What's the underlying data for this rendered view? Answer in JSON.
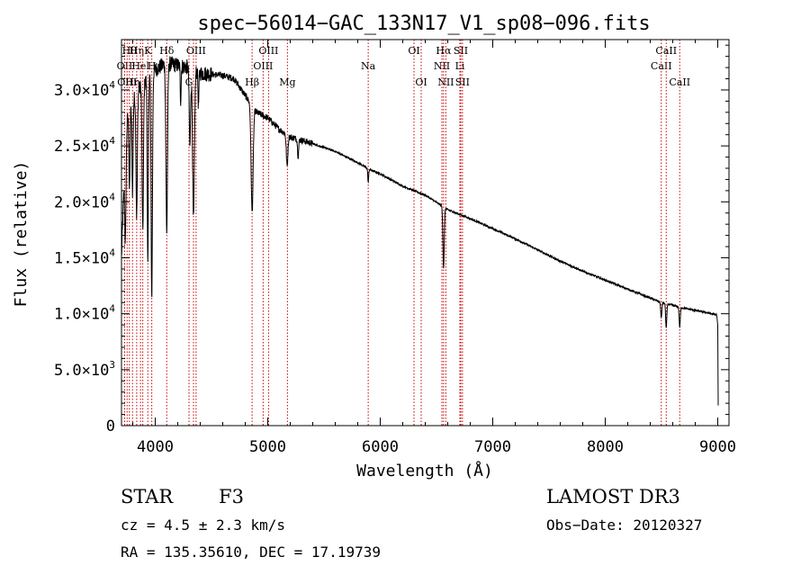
{
  "chart_data": {
    "type": "line",
    "title": "spec−56014−GAC_133N17_V1_sp08−096.fits",
    "xlabel": "Wavelength (Å)",
    "ylabel": "Flux (relative)",
    "xlim": [
      3700,
      9100
    ],
    "ylim": [
      0,
      34500
    ],
    "x_ticks": [
      {
        "value": 4000,
        "label": "4000"
      },
      {
        "value": 5000,
        "label": "5000"
      },
      {
        "value": 6000,
        "label": "6000"
      },
      {
        "value": 7000,
        "label": "7000"
      },
      {
        "value": 8000,
        "label": "8000"
      },
      {
        "value": 9000,
        "label": "9000"
      }
    ],
    "y_ticks": [
      {
        "value": 0,
        "mant": "0",
        "exp": ""
      },
      {
        "value": 5000,
        "mant": "5.0×10",
        "exp": "3"
      },
      {
        "value": 10000,
        "mant": "1.0×10",
        "exp": "4"
      },
      {
        "value": 15000,
        "mant": "1.5×10",
        "exp": "4"
      },
      {
        "value": 20000,
        "mant": "2.0×10",
        "exp": "4"
      },
      {
        "value": 25000,
        "mant": "2.5×10",
        "exp": "4"
      },
      {
        "value": 30000,
        "mant": "3.0×10",
        "exp": "4"
      }
    ],
    "line_color": "#000000",
    "marker_color": "#cc0000",
    "continuum": [
      [
        3700,
        15000
      ],
      [
        3740,
        27000
      ],
      [
        3800,
        29000
      ],
      [
        3850,
        30000
      ],
      [
        3900,
        30500
      ],
      [
        3950,
        31500
      ],
      [
        4000,
        31800
      ],
      [
        4100,
        32400
      ],
      [
        4200,
        32200
      ],
      [
        4300,
        32000
      ],
      [
        4400,
        31500
      ],
      [
        4500,
        31400
      ],
      [
        4600,
        31300
      ],
      [
        4700,
        31000
      ],
      [
        4800,
        29500
      ],
      [
        4900,
        28000
      ],
      [
        5000,
        27500
      ],
      [
        5100,
        26500
      ],
      [
        5200,
        25800
      ],
      [
        5400,
        25200
      ],
      [
        5600,
        24500
      ],
      [
        5800,
        23500
      ],
      [
        5900,
        22900
      ],
      [
        6000,
        22500
      ],
      [
        6200,
        21400
      ],
      [
        6400,
        20600
      ],
      [
        6600,
        19300
      ],
      [
        6800,
        18500
      ],
      [
        7000,
        17600
      ],
      [
        7200,
        16700
      ],
      [
        7400,
        15700
      ],
      [
        7600,
        14700
      ],
      [
        7800,
        13800
      ],
      [
        8000,
        13000
      ],
      [
        8200,
        12200
      ],
      [
        8400,
        11400
      ],
      [
        8500,
        11000
      ],
      [
        8700,
        10500
      ],
      [
        8900,
        10100
      ],
      [
        8990,
        9900
      ],
      [
        9000,
        9000
      ],
      [
        9005,
        0
      ]
    ],
    "absorption": [
      {
        "center": 3735,
        "depth": 9000,
        "width": 6
      },
      {
        "center": 3771,
        "depth": 7000,
        "width": 5
      },
      {
        "center": 3798,
        "depth": 8000,
        "width": 5
      },
      {
        "center": 3835,
        "depth": 11000,
        "width": 6
      },
      {
        "center": 3889,
        "depth": 13000,
        "width": 6
      },
      {
        "center": 3934,
        "depth": 17000,
        "width": 5
      },
      {
        "center": 3969,
        "depth": 20000,
        "width": 6
      },
      {
        "center": 4102,
        "depth": 15000,
        "width": 7
      },
      {
        "center": 4226,
        "depth": 3000,
        "width": 4
      },
      {
        "center": 4308,
        "depth": 7000,
        "width": 6
      },
      {
        "center": 4340,
        "depth": 13500,
        "width": 8
      },
      {
        "center": 4384,
        "depth": 3000,
        "width": 4
      },
      {
        "center": 4861,
        "depth": 9500,
        "width": 9
      },
      {
        "center": 5172,
        "depth": 2800,
        "width": 7
      },
      {
        "center": 5270,
        "depth": 1500,
        "width": 5
      },
      {
        "center": 5893,
        "depth": 1200,
        "width": 4
      },
      {
        "center": 6563,
        "depth": 5500,
        "width": 6
      },
      {
        "center": 8498,
        "depth": 1400,
        "width": 5
      },
      {
        "center": 8542,
        "depth": 2200,
        "width": 5
      },
      {
        "center": 8662,
        "depth": 1800,
        "width": 5
      }
    ],
    "line_markers": [
      {
        "wl": 3728,
        "label": "OII",
        "row": 1
      },
      {
        "wl": 3750,
        "label": "OIII",
        "row": 2
      },
      {
        "wl": 3770,
        "label": "Hθ",
        "row": 0
      },
      {
        "wl": 3798,
        "label": "Hη",
        "row": 2
      },
      {
        "wl": 3835,
        "label": "Hη",
        "row": 0
      },
      {
        "wl": 3869,
        "label": "Hel",
        "row": 1
      },
      {
        "wl": 3889,
        "label": "",
        "row": 1
      },
      {
        "wl": 3934,
        "label": "K",
        "row": 0
      },
      {
        "wl": 3969,
        "label": "H",
        "row": 1
      },
      {
        "wl": 4102,
        "label": "Hδ",
        "row": 0
      },
      {
        "wl": 4300,
        "label": "G",
        "row": 2
      },
      {
        "wl": 4340,
        "label": "",
        "row": 0
      },
      {
        "wl": 4363,
        "label": "OIII",
        "row": 0
      },
      {
        "wl": 4861,
        "label": "Hβ",
        "row": 2
      },
      {
        "wl": 4959,
        "label": "OIII",
        "row": 1
      },
      {
        "wl": 5007,
        "label": "OIII",
        "row": 0
      },
      {
        "wl": 5175,
        "label": "Mg",
        "row": 2
      },
      {
        "wl": 5893,
        "label": "Na",
        "row": 1
      },
      {
        "wl": 6300,
        "label": "OI",
        "row": 0
      },
      {
        "wl": 6364,
        "label": "OI",
        "row": 2
      },
      {
        "wl": 6548,
        "label": "NII",
        "row": 1
      },
      {
        "wl": 6563,
        "label": "Hα",
        "row": 0
      },
      {
        "wl": 6583,
        "label": "NII",
        "row": 2
      },
      {
        "wl": 6708,
        "label": "Li",
        "row": 1
      },
      {
        "wl": 6716,
        "label": "SII",
        "row": 0
      },
      {
        "wl": 6731,
        "label": "SII",
        "row": 2
      },
      {
        "wl": 8498,
        "label": "CaII",
        "row": 1
      },
      {
        "wl": 8542,
        "label": "CaII",
        "row": 0
      },
      {
        "wl": 8662,
        "label": "CaII",
        "row": 2
      }
    ]
  },
  "info": {
    "object_type": "STAR",
    "subclass": "F3",
    "survey": "LAMOST DR3",
    "cz": "cz = 4.5 ± 2.3 km/s",
    "obs_date": "Obs−Date: 20120327",
    "coords": "RA = 135.35610, DEC =  17.19739"
  }
}
